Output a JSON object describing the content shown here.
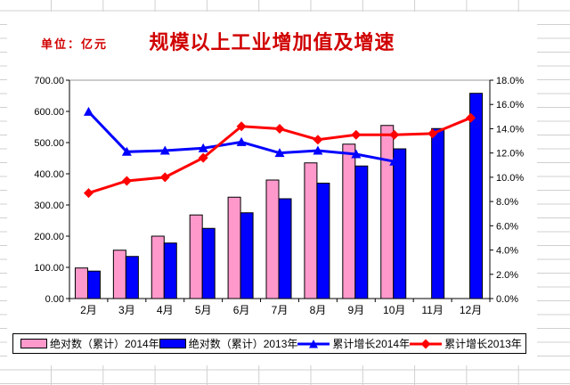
{
  "sheet": {
    "grid_color": "#d0d0d0",
    "background": "#ffffff"
  },
  "chart": {
    "title_color": "#d00000",
    "unit_color": "#d00000",
    "plot_border_top_color": "#999999",
    "axis_color": "#000000"
  },
  "chart_data": {
    "type": "bar",
    "subtype": "bar-line-combo-dual-axis",
    "title": "规模以上工业增加值及增速",
    "unit_label": "单位：亿元",
    "grid": false,
    "legend_position": "bottom",
    "categories": [
      "2月",
      "3月",
      "4月",
      "5月",
      "6月",
      "7月",
      "8月",
      "9月",
      "10月",
      "11月",
      "12月"
    ],
    "series": [
      {
        "name": "绝对数（累计）2014年",
        "type": "bar",
        "axis": "left",
        "color": "#ff99cc",
        "values": [
          98,
          155,
          200,
          268,
          325,
          380,
          435,
          495,
          555,
          null,
          null
        ]
      },
      {
        "name": "绝对数（累计）2013年",
        "type": "bar",
        "axis": "left",
        "color": "#0000ff",
        "values": [
          88,
          135,
          178,
          225,
          275,
          320,
          370,
          425,
          480,
          545,
          658
        ]
      },
      {
        "name": "累计增长2014年",
        "type": "line",
        "axis": "right",
        "color": "#0000ff",
        "marker": "triangle",
        "values": [
          15.4,
          12.1,
          12.2,
          12.4,
          12.9,
          12.0,
          12.2,
          11.9,
          11.3,
          null,
          null
        ]
      },
      {
        "name": "累计增长2013年",
        "type": "line",
        "axis": "right",
        "color": "#ff0000",
        "marker": "diamond",
        "values": [
          8.7,
          9.7,
          10.0,
          11.6,
          14.2,
          14.0,
          13.1,
          13.5,
          13.5,
          13.6,
          14.9
        ]
      }
    ],
    "left_axis": {
      "min": 0,
      "max": 700,
      "step": 100,
      "tick_labels": [
        "700.00",
        "600.00",
        "500.00",
        "400.00",
        "300.00",
        "200.00",
        "100.00",
        "0.00"
      ]
    },
    "right_axis": {
      "min": 0,
      "max": 18,
      "step": 2,
      "tick_labels": [
        "18.0%",
        "16.0%",
        "14.0%",
        "12.0%",
        "10.0%",
        "8.0%",
        "6.0%",
        "4.0%",
        "2.0%",
        "0.0%"
      ]
    }
  }
}
